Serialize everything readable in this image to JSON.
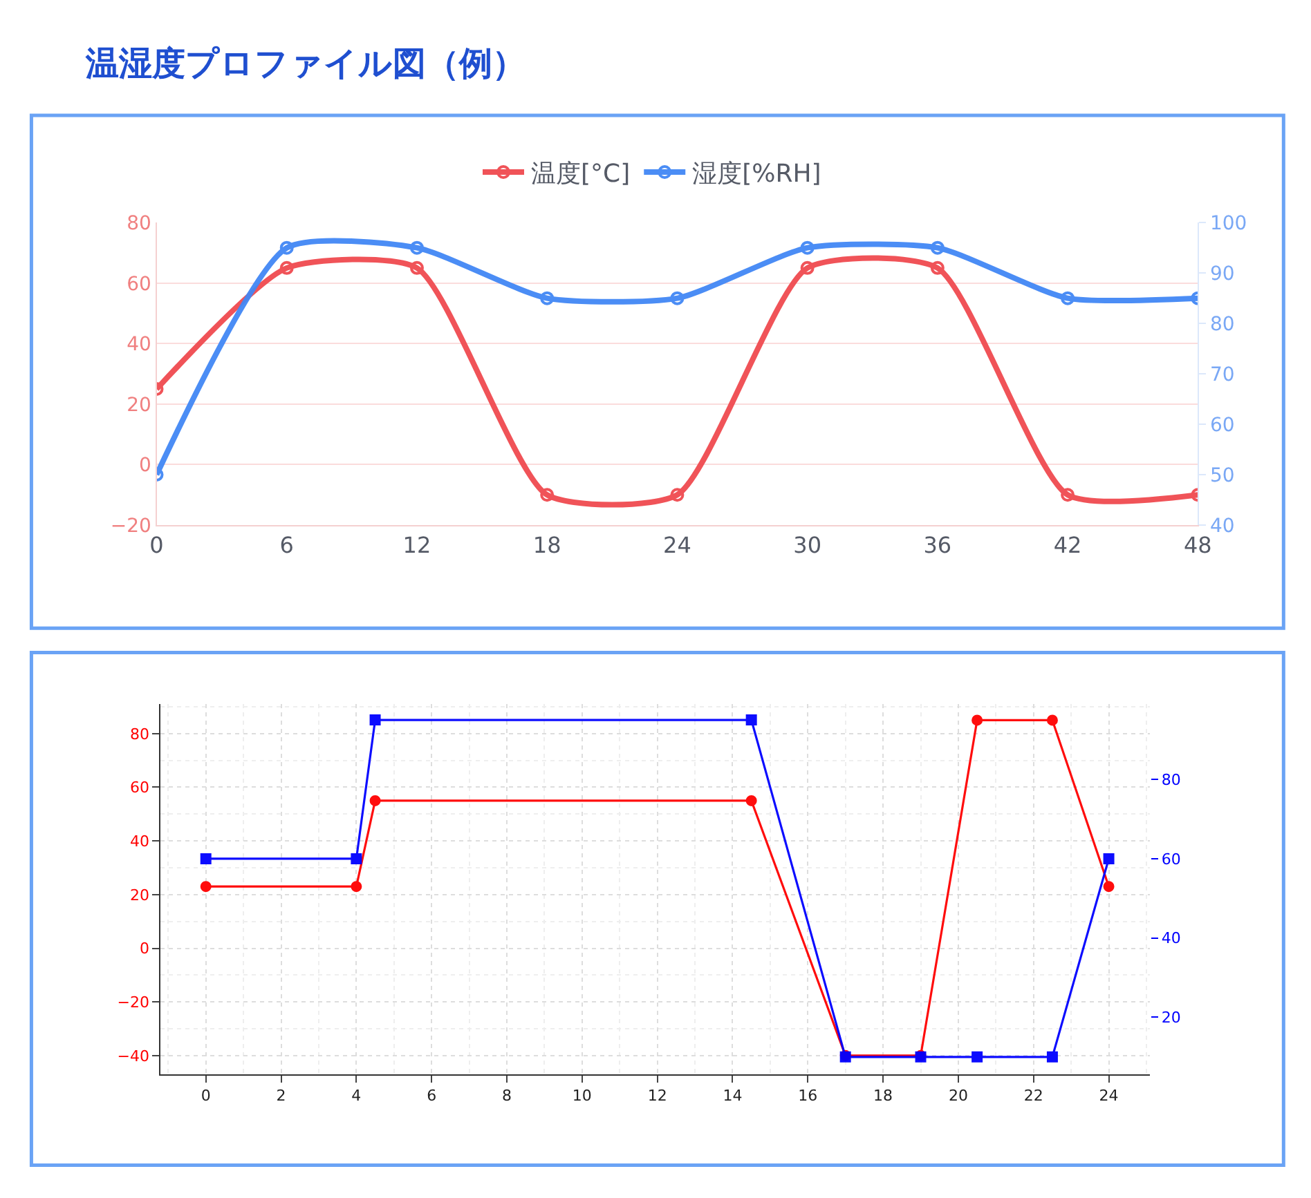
{
  "chart_data": [
    {
      "type": "line",
      "title": "温湿度プロファイル図（例）",
      "x": [
        0,
        6,
        12,
        18,
        24,
        30,
        36,
        42,
        48
      ],
      "series": [
        {
          "name": "温度[°C]",
          "color": "#f04a50",
          "values": [
            25,
            65,
            65,
            -10,
            -10,
            65,
            65,
            -10,
            -10
          ]
        },
        {
          "name": "湿度[%RH]",
          "color": "#4287f5",
          "axis": "y2",
          "values": [
            50,
            95,
            95,
            85,
            85,
            95,
            95,
            85,
            85
          ]
        }
      ],
      "xlim": [
        0,
        48
      ],
      "xticks": [
        0,
        6,
        12,
        18,
        24,
        30,
        36,
        42,
        48
      ],
      "ylim": [
        -20,
        80
      ],
      "yticks": [
        -20,
        0,
        20,
        40,
        60,
        80
      ],
      "y2lim": [
        40,
        100
      ],
      "y2ticks": [
        40,
        50,
        60,
        70,
        80,
        90,
        100
      ],
      "grid": "y",
      "legend": "top",
      "marker": "circle"
    },
    {
      "type": "line",
      "x": [
        0,
        4,
        4.5,
        14.5,
        17,
        19,
        20.5,
        22.5,
        24
      ],
      "series": [
        {
          "color": "#ff0000",
          "marker": "circle",
          "values": [
            23,
            23,
            55,
            55,
            -40,
            -40,
            85,
            85,
            23
          ]
        },
        {
          "color": "#0000ff",
          "marker": "square",
          "axis": "y2",
          "values": [
            60,
            60,
            95,
            95,
            10,
            10,
            10,
            10,
            60
          ]
        }
      ],
      "xlim": [
        -1.2,
        25.1
      ],
      "xticks": [
        0,
        2,
        4,
        6,
        8,
        10,
        12,
        14,
        16,
        18,
        20,
        22,
        24
      ],
      "ylim": [
        -47,
        91
      ],
      "yticks": [
        -40,
        -20,
        0,
        20,
        40,
        60,
        80
      ],
      "y2lim": [
        5.6,
        99
      ],
      "y2ticks": [
        20,
        40,
        60,
        80
      ],
      "grid": true
    }
  ]
}
